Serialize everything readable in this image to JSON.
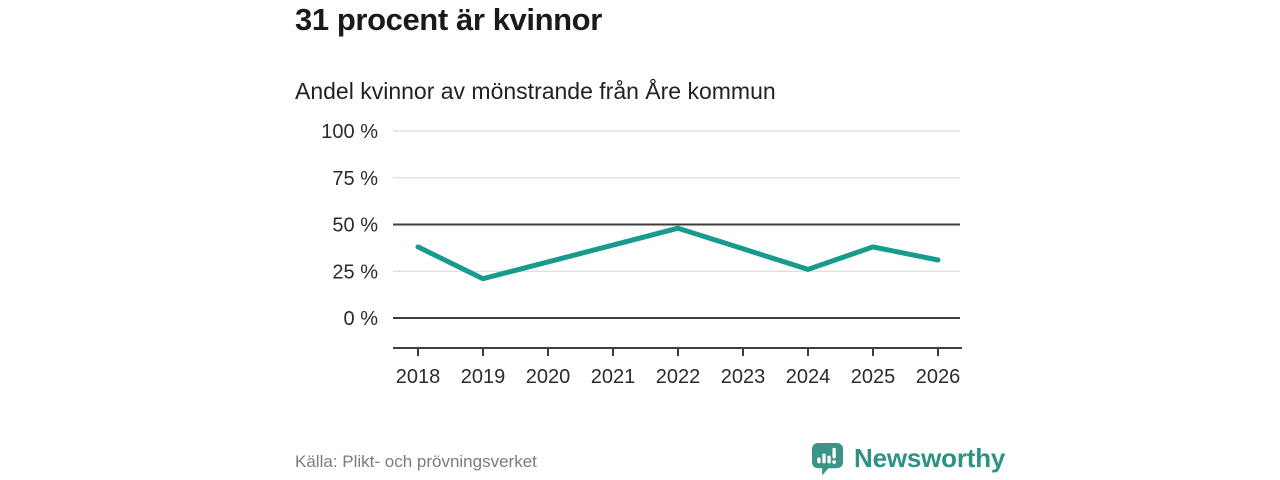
{
  "header": {
    "title": "31 procent är kvinnor",
    "subtitle": "Andel kvinnor av mönstrande från Åre kommun"
  },
  "footer": {
    "source": "Källa: Plikt- och prövningsverket",
    "brand": "Newsworthy"
  },
  "colors": {
    "line": "#169B8D",
    "grid_light": "#DBDBDB",
    "grid_dark": "#3D3D3D",
    "axis": "#3D3D3D",
    "tick_text": "#2B2B2B",
    "badge_teal": "#3A9488",
    "brand_teal": "#2D9184"
  },
  "chart_data": {
    "type": "line",
    "title": "31 procent är kvinnor",
    "subtitle": "Andel kvinnor av mönstrande från Åre kommun",
    "categories": [
      "2018",
      "2019",
      "2020",
      "2021",
      "2022",
      "2023",
      "2024",
      "2025",
      "2026"
    ],
    "series": [
      {
        "name": "Andel kvinnor av mönstrande",
        "values": [
          38,
          21,
          30,
          39,
          48,
          37,
          26,
          38,
          31
        ]
      }
    ],
    "ylim": [
      0,
      100
    ],
    "yticks": [
      {
        "value": 0,
        "label": "0 %",
        "emphasis": true
      },
      {
        "value": 25,
        "label": "25 %",
        "emphasis": false
      },
      {
        "value": 50,
        "label": "50 %",
        "emphasis": true
      },
      {
        "value": 75,
        "label": "75 %",
        "emphasis": false
      },
      {
        "value": 100,
        "label": "100 %",
        "emphasis": false
      }
    ],
    "grid": true,
    "legend": "none",
    "unit": "%"
  }
}
